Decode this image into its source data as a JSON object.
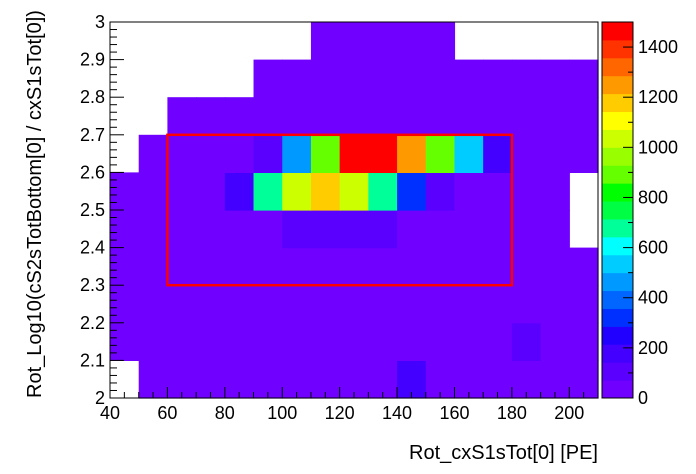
{
  "chart_data": {
    "type": "heatmap",
    "xlabel": "Rot_cxS1sTot[0]  [PE]",
    "ylabel": "Rot_Log10(cS2sTotBottom[0] / cxS1sTot[0])",
    "xlim": [
      40,
      210
    ],
    "ylim": [
      2.0,
      3.0
    ],
    "x_bin_width": 10,
    "y_bin_width": 0.1,
    "x_ticks": [
      "40",
      "60",
      "80",
      "100",
      "120",
      "140",
      "160",
      "180",
      "200"
    ],
    "y_ticks": [
      "2",
      "2.1",
      "2.2",
      "2.3",
      "2.4",
      "2.5",
      "2.6",
      "2.7",
      "2.8",
      "2.9",
      "3"
    ],
    "z_range": [
      0,
      1500
    ],
    "colorbar_ticks": [
      "0",
      "200",
      "400",
      "600",
      "800",
      "1000",
      "1200",
      "1400"
    ],
    "colorbar_colors": [
      "#7000ff",
      "#5a00ff",
      "#4400ff",
      "#2200ff",
      "#0030ff",
      "#0066ff",
      "#0099ff",
      "#00ccff",
      "#00ffff",
      "#00ff99",
      "#00ff44",
      "#00ff00",
      "#66ff00",
      "#99ff00",
      "#ccff00",
      "#ffff00",
      "#ffcc00",
      "#ff9900",
      "#ff6600",
      "#ff3300",
      "#ff0000"
    ],
    "cells": [
      [
        1,
        2,
        3,
        4,
        5,
        6,
        7,
        8,
        9,
        10,
        11,
        12,
        13,
        14,
        15,
        16
      ],
      [
        0,
        1,
        2,
        3,
        4,
        5,
        6,
        7,
        8,
        9,
        10,
        11,
        12,
        13,
        14,
        15,
        16
      ],
      [
        0,
        1,
        2,
        3,
        4,
        5,
        6,
        7,
        8,
        9,
        10,
        11,
        12,
        13,
        14,
        15,
        16
      ],
      [
        0,
        1,
        2,
        3,
        4,
        5,
        6,
        7,
        8,
        9,
        10,
        11,
        12,
        13,
        14,
        15,
        16
      ],
      [
        0,
        1,
        2,
        3,
        4,
        5,
        6,
        7,
        8,
        9,
        10,
        11,
        12,
        13,
        14,
        15
      ],
      [
        0,
        1,
        2,
        3,
        4,
        5,
        6,
        7,
        8,
        9,
        10,
        11,
        12,
        13,
        14,
        15
      ],
      [
        1,
        2,
        3,
        4,
        5,
        6,
        7,
        8,
        9,
        10,
        11,
        12,
        13,
        14,
        15,
        16
      ],
      [
        2,
        3,
        4,
        5,
        6,
        7,
        8,
        9,
        10,
        11,
        12,
        13,
        14,
        15,
        16
      ],
      [
        5,
        6,
        7,
        8,
        9,
        10,
        11,
        12,
        13,
        14,
        15,
        16
      ],
      [
        7,
        8,
        9,
        10,
        11
      ]
    ],
    "values": [
      [
        20,
        20,
        20,
        20,
        20,
        20,
        20,
        20,
        50,
        150,
        60,
        20,
        20,
        20,
        20,
        10
      ],
      [
        20,
        20,
        20,
        20,
        20,
        20,
        20,
        20,
        20,
        20,
        20,
        20,
        20,
        20,
        100,
        20,
        20
      ],
      [
        20,
        20,
        20,
        20,
        20,
        20,
        20,
        20,
        20,
        20,
        20,
        20,
        20,
        20,
        20,
        20,
        20
      ],
      [
        20,
        20,
        20,
        20,
        20,
        20,
        20,
        20,
        20,
        20,
        20,
        20,
        20,
        20,
        20,
        20,
        20
      ],
      [
        20,
        20,
        20,
        20,
        20,
        20,
        100,
        100,
        100,
        100,
        20,
        20,
        20,
        20,
        20,
        20
      ],
      [
        20,
        20,
        20,
        20,
        200,
        650,
        1050,
        1200,
        1000,
        650,
        300,
        100,
        20,
        20,
        20,
        20
      ],
      [
        30,
        20,
        20,
        20,
        100,
        450,
        900,
        1500,
        1500,
        1250,
        900,
        500,
        150,
        20,
        20,
        30
      ],
      [
        20,
        20,
        20,
        20,
        20,
        20,
        20,
        20,
        20,
        20,
        20,
        20,
        20,
        20,
        20
      ],
      [
        20,
        20,
        20,
        20,
        20,
        20,
        20,
        20,
        20,
        20,
        20,
        20
      ],
      [
        20,
        20,
        20,
        20,
        20
      ]
    ],
    "region_lines": [
      {
        "type": "box",
        "color": "#ff0000",
        "x": [
          60,
          180
        ],
        "y": [
          2.3,
          2.7
        ]
      }
    ]
  }
}
